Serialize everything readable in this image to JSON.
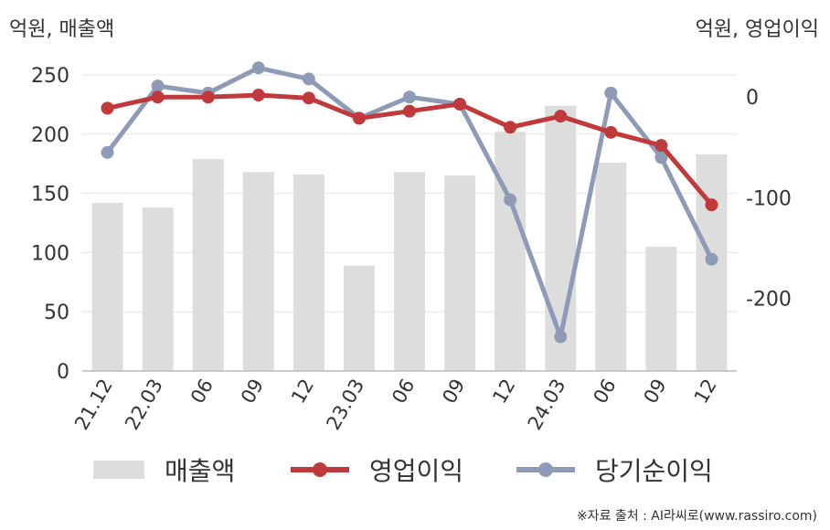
{
  "units": {
    "left": "억원, 매출액",
    "right": "억원, 영업이익"
  },
  "source": "※자료 출처 : AI라씨로(www.rassiro.com)",
  "colors": {
    "bar": "#dddddd",
    "op": "#c0393b",
    "net": "#8e9bb6",
    "grid": "#e6e6e6",
    "axis": "#bbbbbb"
  },
  "chart_data": {
    "type": "bar+line",
    "categories": [
      "21.12",
      "22.03",
      "06",
      "09",
      "12",
      "23.03",
      "06",
      "09",
      "12",
      "24.03",
      "06",
      "09",
      "12"
    ],
    "left_axis": {
      "ticks": [
        0,
        50,
        100,
        150,
        200,
        250
      ],
      "ylim": [
        0,
        250
      ]
    },
    "right_axis": {
      "ticks": [
        0,
        -100,
        -200
      ],
      "ylim": [
        -272,
        22
      ]
    },
    "series": [
      {
        "name": "매출액",
        "type": "bar",
        "axis": "left",
        "values": [
          142,
          138,
          179,
          168,
          166,
          89,
          168,
          165,
          202,
          224,
          176,
          105,
          183
        ]
      },
      {
        "name": "영업이익",
        "type": "line",
        "axis": "right",
        "values": [
          -11,
          0,
          0,
          2,
          -1,
          -21,
          -14,
          -7,
          -30,
          -19,
          -35,
          -48,
          -107
        ]
      },
      {
        "name": "당기순이익",
        "type": "line",
        "axis": "right",
        "values": [
          -55,
          11,
          4,
          29,
          18,
          -21,
          0,
          -7,
          -102,
          -238,
          4,
          -60,
          -161
        ]
      }
    ],
    "grid": true,
    "legend": "bottom"
  }
}
